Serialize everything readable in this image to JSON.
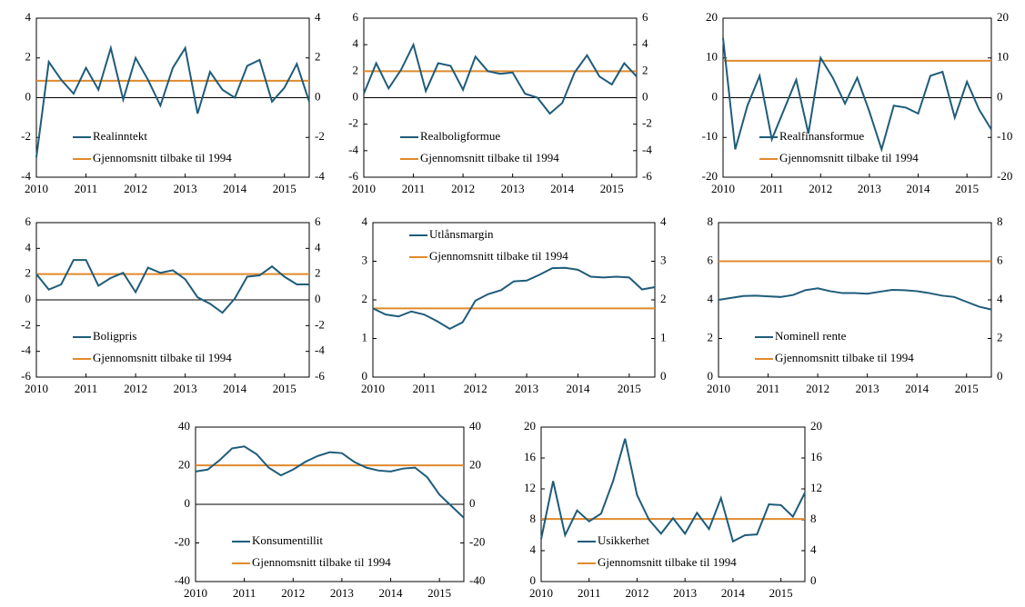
{
  "chart_data": [
    {
      "type": "line",
      "categories": [
        "2010",
        null,
        null,
        null,
        "2011",
        null,
        null,
        null,
        "2012",
        null,
        null,
        null,
        "2013",
        null,
        null,
        null,
        "2014",
        null,
        null,
        null,
        "2015",
        null,
        null
      ],
      "series": [
        {
          "name": "Realinntekt",
          "color": "#1f5c7a",
          "values": [
            -3.0,
            1.8,
            0.9,
            0.2,
            1.5,
            0.4,
            2.5,
            -0.1,
            2.0,
            0.9,
            -0.4,
            1.5,
            2.5,
            -0.8,
            1.3,
            0.4,
            0.0,
            1.6,
            1.9,
            -0.2,
            0.5,
            1.7,
            -0.2
          ]
        }
      ],
      "average": {
        "name": "Gjennomsnitt tilbake til 1994",
        "value": 0.85,
        "color": "#e08a2c"
      },
      "ylim": [
        -4,
        4
      ],
      "yticks": [
        -4,
        -2,
        0,
        2,
        4
      ],
      "y2lim": [
        -4,
        4
      ],
      "y2ticks": [
        -4,
        -2,
        0,
        2,
        4
      ],
      "legend": "lower left"
    },
    {
      "type": "line",
      "categories": [
        "2010",
        null,
        null,
        null,
        "2011",
        null,
        null,
        null,
        "2012",
        null,
        null,
        null,
        "2013",
        null,
        null,
        null,
        "2014",
        null,
        null,
        null,
        "2015",
        null,
        null
      ],
      "series": [
        {
          "name": "Realboligformue",
          "color": "#1f5c7a",
          "values": [
            0.3,
            2.6,
            0.7,
            2.1,
            4.0,
            0.5,
            2.6,
            2.4,
            0.6,
            3.1,
            2.0,
            1.8,
            1.9,
            0.3,
            0.0,
            -1.2,
            -0.4,
            1.9,
            3.2,
            1.6,
            1.0,
            2.6,
            1.6
          ]
        }
      ],
      "average": {
        "name": "Gjennomsnitt tilbake til 1994",
        "value": 2.0,
        "color": "#e08a2c"
      },
      "ylim": [
        -6,
        6
      ],
      "yticks": [
        -6,
        -4,
        -2,
        0,
        2,
        4,
        6
      ],
      "y2lim": [
        -6,
        6
      ],
      "y2ticks": [
        -6,
        -4,
        -2,
        0,
        2,
        4,
        6
      ],
      "legend": "lower left"
    },
    {
      "type": "line",
      "categories": [
        "2010",
        null,
        null,
        null,
        "2011",
        null,
        null,
        null,
        "2012",
        null,
        null,
        null,
        "2013",
        null,
        null,
        null,
        "2014",
        null,
        null,
        null,
        "2015",
        null,
        null
      ],
      "series": [
        {
          "name": "Realfinansformue",
          "color": "#1f5c7a",
          "values": [
            15,
            -13,
            -2,
            5.5,
            -10.5,
            -3,
            4.5,
            -9,
            10,
            5,
            -1.5,
            5,
            -3.5,
            -13,
            -2,
            -2.5,
            -4,
            5.5,
            6.5,
            -5,
            4,
            -3,
            -8
          ]
        }
      ],
      "average": {
        "name": "Gjennomsnitt tilbake til 1994",
        "value": 9.3,
        "color": "#e08a2c"
      },
      "ylim": [
        -20,
        20
      ],
      "yticks": [
        -20,
        -10,
        0,
        10,
        20
      ],
      "y2lim": [
        -20,
        20
      ],
      "y2ticks": [
        -20,
        -10,
        0,
        10,
        20
      ],
      "legend": "lower left"
    },
    {
      "type": "line",
      "categories": [
        "2010",
        null,
        null,
        null,
        "2011",
        null,
        null,
        null,
        "2012",
        null,
        null,
        null,
        "2013",
        null,
        null,
        null,
        "2014",
        null,
        null,
        null,
        "2015",
        null,
        null
      ],
      "series": [
        {
          "name": "Boligpris",
          "color": "#1f5c7a",
          "values": [
            2.0,
            0.8,
            1.2,
            3.1,
            3.1,
            1.1,
            1.7,
            2.1,
            0.6,
            2.5,
            2.1,
            2.3,
            1.6,
            0.2,
            -0.3,
            -1.0,
            0.1,
            1.8,
            1.9,
            2.6,
            1.8,
            1.2,
            1.2
          ]
        }
      ],
      "average": {
        "name": "Gjennomsnitt tilbake til 1994",
        "value": 2.0,
        "color": "#e08a2c"
      },
      "ylim": [
        -6,
        6
      ],
      "yticks": [
        -6,
        -4,
        -2,
        0,
        2,
        4,
        6
      ],
      "y2lim": [
        -6,
        6
      ],
      "y2ticks": [
        -6,
        -4,
        -2,
        0,
        2,
        4,
        6
      ],
      "legend": "lower left"
    },
    {
      "type": "line",
      "categories": [
        "2010",
        null,
        null,
        null,
        "2011",
        null,
        null,
        null,
        "2012",
        null,
        null,
        null,
        "2013",
        null,
        null,
        null,
        "2014",
        null,
        null,
        null,
        "2015",
        null,
        null
      ],
      "series": [
        {
          "name": "Utlånsmargin",
          "color": "#1f5c7a",
          "values": [
            1.78,
            1.62,
            1.57,
            1.7,
            1.62,
            1.45,
            1.25,
            1.42,
            1.98,
            2.15,
            2.25,
            2.48,
            2.5,
            2.65,
            2.82,
            2.83,
            2.78,
            2.6,
            2.58,
            2.6,
            2.58,
            2.27,
            2.33
          ]
        }
      ],
      "average": {
        "name": "Gjennomsnitt tilbake til 1994",
        "value": 1.78,
        "color": "#e08a2c"
      },
      "ylim": [
        0,
        4
      ],
      "yticks": [
        0,
        1,
        2,
        3,
        4
      ],
      "y2lim": [
        0,
        4
      ],
      "y2ticks": [
        0,
        1,
        2,
        3,
        4
      ],
      "legend": "upper left"
    },
    {
      "type": "line",
      "categories": [
        "2010",
        null,
        null,
        null,
        "2011",
        null,
        null,
        null,
        "2012",
        null,
        null,
        null,
        "2013",
        null,
        null,
        null,
        "2014",
        null,
        null,
        null,
        "2015",
        null,
        null
      ],
      "series": [
        {
          "name": "Nominell rente",
          "color": "#1f5c7a",
          "values": [
            4.0,
            4.1,
            4.2,
            4.22,
            4.18,
            4.15,
            4.25,
            4.5,
            4.6,
            4.45,
            4.35,
            4.35,
            4.32,
            4.42,
            4.52,
            4.5,
            4.45,
            4.35,
            4.22,
            4.15,
            3.9,
            3.65,
            3.5
          ]
        }
      ],
      "average": {
        "name": "Gjennomsnitt tilbake til 1994",
        "value": 6.0,
        "color": "#e08a2c"
      },
      "ylim": [
        0,
        8
      ],
      "yticks": [
        0,
        2,
        4,
        6,
        8
      ],
      "y2lim": [
        0,
        8
      ],
      "y2ticks": [
        0,
        2,
        4,
        6,
        8
      ],
      "legend": "lower left"
    },
    {
      "type": "line",
      "categories": [
        "2010",
        null,
        null,
        null,
        "2011",
        null,
        null,
        null,
        "2012",
        null,
        null,
        null,
        "2013",
        null,
        null,
        null,
        "2014",
        null,
        null,
        null,
        "2015",
        null,
        null
      ],
      "series": [
        {
          "name": "Konsumentillit",
          "color": "#1f5c7a",
          "values": [
            17,
            18,
            23,
            29,
            30,
            26,
            19,
            15,
            18,
            22,
            25,
            27,
            26.5,
            22,
            19,
            17.5,
            17,
            18.5,
            19,
            14,
            5,
            -1,
            -7
          ]
        }
      ],
      "average": {
        "name": "Gjennomsnitt tilbake til 1994",
        "value": 20.2,
        "color": "#e08a2c"
      },
      "ylim": [
        -40,
        40
      ],
      "yticks": [
        -40,
        -20,
        0,
        20,
        40
      ],
      "y2lim": [
        -40,
        40
      ],
      "y2ticks": [
        -40,
        -20,
        0,
        20,
        40
      ],
      "legend": "lower left"
    },
    {
      "type": "line",
      "categories": [
        "2010",
        null,
        null,
        null,
        "2011",
        null,
        null,
        null,
        "2012",
        null,
        null,
        null,
        "2013",
        null,
        null,
        null,
        "2014",
        null,
        null,
        null,
        "2015",
        null,
        null
      ],
      "series": [
        {
          "name": "Usikkerhet",
          "color": "#1f5c7a",
          "values": [
            5.5,
            13,
            6,
            9.2,
            7.8,
            8.8,
            13,
            18.5,
            11.2,
            8,
            6.2,
            8.2,
            6.2,
            8.9,
            6.8,
            10.8,
            5.2,
            6,
            6.1,
            10,
            9.9,
            8.4,
            11.5
          ]
        }
      ],
      "average": {
        "name": "Gjennomsnitt tilbake til 1994",
        "value": 8.1,
        "color": "#e08a2c"
      },
      "ylim": [
        0,
        20
      ],
      "yticks": [
        0,
        4,
        8,
        12,
        16,
        20
      ],
      "y2lim": [
        0,
        20
      ],
      "y2ticks": [
        0,
        4,
        8,
        12,
        16,
        20
      ],
      "legend": "lower left"
    }
  ]
}
